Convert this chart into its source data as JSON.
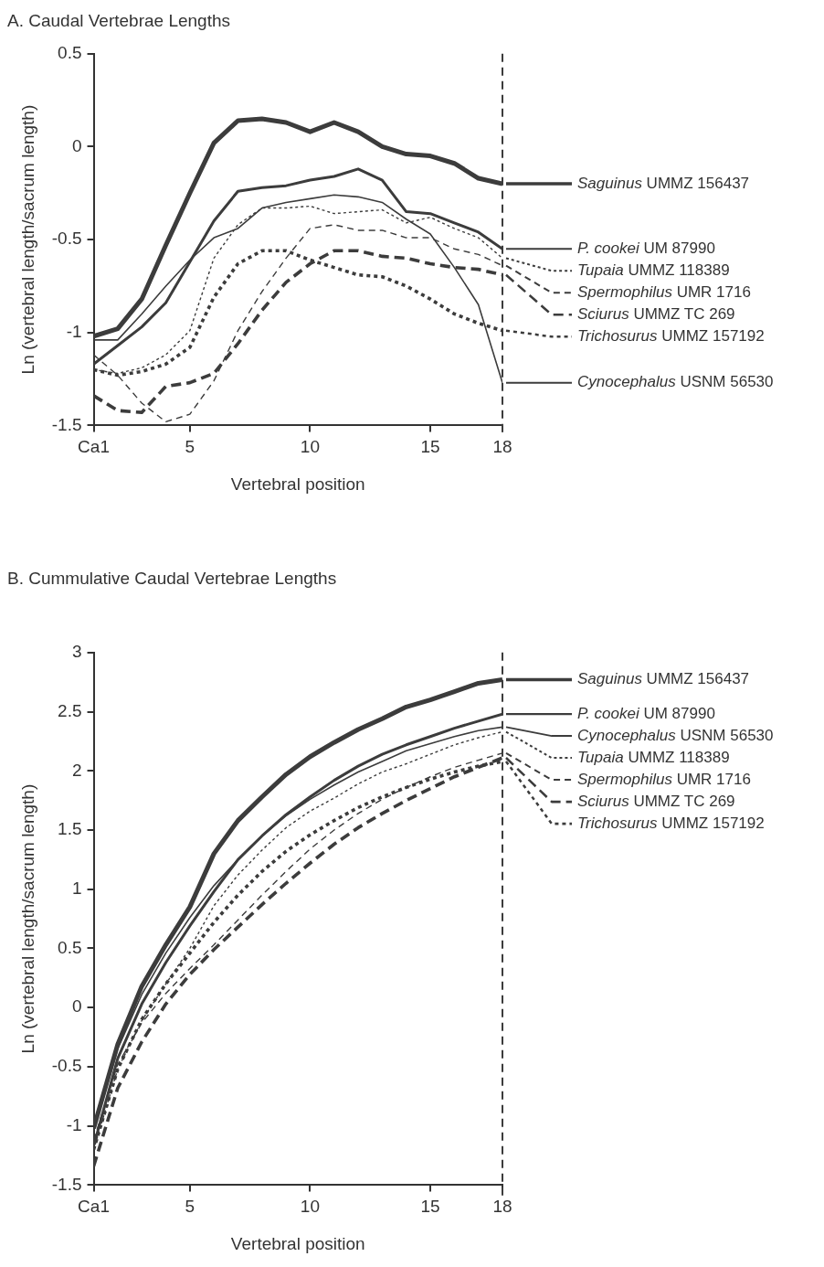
{
  "chart_data": [
    {
      "type": "line",
      "title": "A. Caudal Vertebrae Lengths",
      "xlabel": "Vertebral position",
      "ylabel": "Ln (vertebral length/sacrum length)",
      "x": [
        1,
        2,
        3,
        4,
        5,
        6,
        7,
        8,
        9,
        10,
        11,
        12,
        13,
        14,
        15,
        16,
        17,
        18
      ],
      "xlim": [
        1,
        18
      ],
      "xticks": [
        {
          "value": 1,
          "label": "Ca1"
        },
        5,
        10,
        15,
        18
      ],
      "ylim": [
        -1.5,
        0.5
      ],
      "yticks": [
        -1.5,
        -1,
        -0.5,
        0,
        0.5
      ],
      "marker": "none",
      "legend": "right",
      "ref_lines": [
        {
          "axis": "x",
          "value": 18,
          "line_style": "dashed",
          "color": "#3c3c3c"
        }
      ],
      "series": [
        {
          "name": "Saguinus UMMZ 156437",
          "color": "#3c3c3c",
          "line_style": "solid",
          "values": [
            -1.02,
            -0.98,
            -0.82,
            -0.53,
            -0.25,
            0.02,
            0.14,
            0.15,
            0.13,
            0.08,
            0.13,
            0.08,
            0,
            -0.04,
            -0.05,
            -0.09,
            -0.17,
            -0.2
          ]
        },
        {
          "name": "P. cookei UM 87990",
          "color": "#3c3c3c",
          "line_style": "solid",
          "values": [
            -1.17,
            -1.07,
            -0.97,
            -0.84,
            -0.62,
            -0.4,
            -0.24,
            -0.22,
            -0.21,
            -0.18,
            -0.16,
            -0.12,
            -0.18,
            -0.35,
            -0.36,
            -0.41,
            -0.46,
            -0.55
          ]
        },
        {
          "name": "Tupaia UMMZ 118389",
          "color": "#3c3c3c",
          "line_style": "dotted",
          "values": [
            -1.2,
            -1.22,
            -1.19,
            -1.12,
            -0.99,
            -0.6,
            -0.42,
            -0.33,
            -0.33,
            -0.32,
            -0.36,
            -0.35,
            -0.34,
            -0.41,
            -0.38,
            -0.44,
            -0.49,
            -0.6
          ]
        },
        {
          "name": "Spermophilus UMR 1716",
          "color": "#3c3c3c",
          "line_style": "dashed",
          "values": [
            -1.12,
            -1.23,
            -1.38,
            -1.48,
            -1.44,
            -1.26,
            -0.99,
            -0.78,
            -0.6,
            -0.44,
            -0.42,
            -0.45,
            -0.45,
            -0.49,
            -0.49,
            -0.55,
            -0.58,
            -0.64
          ]
        },
        {
          "name": "Sciurus UMMZ TC 269",
          "color": "#3c3c3c",
          "line_style": "dashed",
          "values": [
            -1.34,
            -1.42,
            -1.43,
            -1.29,
            -1.27,
            -1.22,
            -1.06,
            -0.88,
            -0.73,
            -0.63,
            -0.56,
            -0.56,
            -0.59,
            -0.6,
            -0.63,
            -0.65,
            -0.66,
            -0.69
          ]
        },
        {
          "name": "Trichosurus UMMZ 157192",
          "color": "#3c3c3c",
          "line_style": "dotted",
          "values": [
            -1.2,
            -1.23,
            -1.21,
            -1.17,
            -1.08,
            -0.81,
            -0.63,
            -0.56,
            -0.56,
            -0.61,
            -0.65,
            -0.69,
            -0.7,
            -0.75,
            -0.82,
            -0.9,
            -0.95,
            -0.99
          ]
        },
        {
          "name": "Cynocephalus USNM 56530",
          "color": "#3c3c3c",
          "line_style": "solid",
          "values": [
            -1.04,
            -1.04,
            -0.9,
            -0.75,
            -0.61,
            -0.49,
            -0.44,
            -0.33,
            -0.3,
            -0.28,
            -0.26,
            -0.27,
            -0.3,
            -0.39,
            -0.47,
            -0.65,
            -0.85,
            -1.27
          ]
        }
      ]
    },
    {
      "type": "line",
      "title": "B. Cummulative Caudal Vertebrae Lengths",
      "xlabel": "Vertebral position",
      "ylabel": "Ln (vertebral length/sacrum length)",
      "x": [
        1,
        2,
        3,
        4,
        5,
        6,
        7,
        8,
        9,
        10,
        11,
        12,
        13,
        14,
        15,
        16,
        17,
        18
      ],
      "xlim": [
        1,
        18
      ],
      "xticks": [
        {
          "value": 1,
          "label": "Ca1"
        },
        5,
        10,
        15,
        18
      ],
      "ylim": [
        -1.5,
        3
      ],
      "yticks": [
        -1.5,
        -1,
        -0.5,
        0,
        0.5,
        1,
        1.5,
        2,
        2.5,
        3
      ],
      "marker": "none",
      "legend": "right",
      "ref_lines": [
        {
          "axis": "x",
          "value": 18,
          "line_style": "dashed",
          "color": "#3c3c3c"
        }
      ],
      "series": [
        {
          "name": "Saguinus UMMZ 156437",
          "color": "#3c3c3c",
          "line_style": "solid",
          "values": [
            -1.02,
            -0.31,
            0.18,
            0.53,
            0.85,
            1.3,
            1.58,
            1.78,
            1.97,
            2.12,
            2.24,
            2.35,
            2.44,
            2.54,
            2.6,
            2.67,
            2.74,
            2.77
          ]
        },
        {
          "name": "P. cookei UM 87990",
          "color": "#3c3c3c",
          "line_style": "solid",
          "values": [
            -1.17,
            -0.43,
            0.03,
            0.38,
            0.69,
            0.98,
            1.25,
            1.45,
            1.63,
            1.78,
            1.92,
            2.04,
            2.14,
            2.22,
            2.29,
            2.36,
            2.42,
            2.48
          ]
        },
        {
          "name": "Tupaia UMMZ 118389",
          "color": "#3c3c3c",
          "line_style": "dotted",
          "values": [
            -1.2,
            -0.52,
            -0.11,
            0.2,
            0.5,
            0.86,
            1.12,
            1.33,
            1.52,
            1.66,
            1.77,
            1.89,
            1.99,
            2.06,
            2.14,
            2.22,
            2.28,
            2.33
          ]
        },
        {
          "name": "Spermophilus UMR 1716",
          "color": "#3c3c3c",
          "line_style": "dashed",
          "values": [
            -1.12,
            -0.48,
            -0.13,
            0.12,
            0.33,
            0.53,
            0.74,
            0.95,
            1.15,
            1.34,
            1.5,
            1.64,
            1.76,
            1.86,
            1.95,
            2.03,
            2.09,
            2.15
          ]
        },
        {
          "name": "Sciurus UMMZ TC 269",
          "color": "#3c3c3c",
          "line_style": "dashed",
          "values": [
            -1.34,
            -0.68,
            -0.29,
            0.03,
            0.28,
            0.49,
            0.68,
            0.87,
            1.05,
            1.22,
            1.38,
            1.52,
            1.64,
            1.75,
            1.85,
            1.95,
            2.03,
            2.11
          ]
        },
        {
          "name": "Trichosurus UMMZ 157192",
          "color": "#3c3c3c",
          "line_style": "dotted",
          "values": [
            -1.2,
            -0.52,
            -0.1,
            0.2,
            0.46,
            0.72,
            0.95,
            1.15,
            1.32,
            1.46,
            1.58,
            1.69,
            1.78,
            1.86,
            1.93,
            1.99,
            2.04,
            2.08
          ]
        },
        {
          "name": "Cynocephalus USNM 56530",
          "color": "#3c3c3c",
          "line_style": "solid",
          "values": [
            -1.04,
            -0.35,
            0.11,
            0.46,
            0.76,
            1.03,
            1.25,
            1.45,
            1.62,
            1.76,
            1.88,
            1.99,
            2.08,
            2.17,
            2.23,
            2.29,
            2.34,
            2.37
          ]
        }
      ]
    }
  ]
}
